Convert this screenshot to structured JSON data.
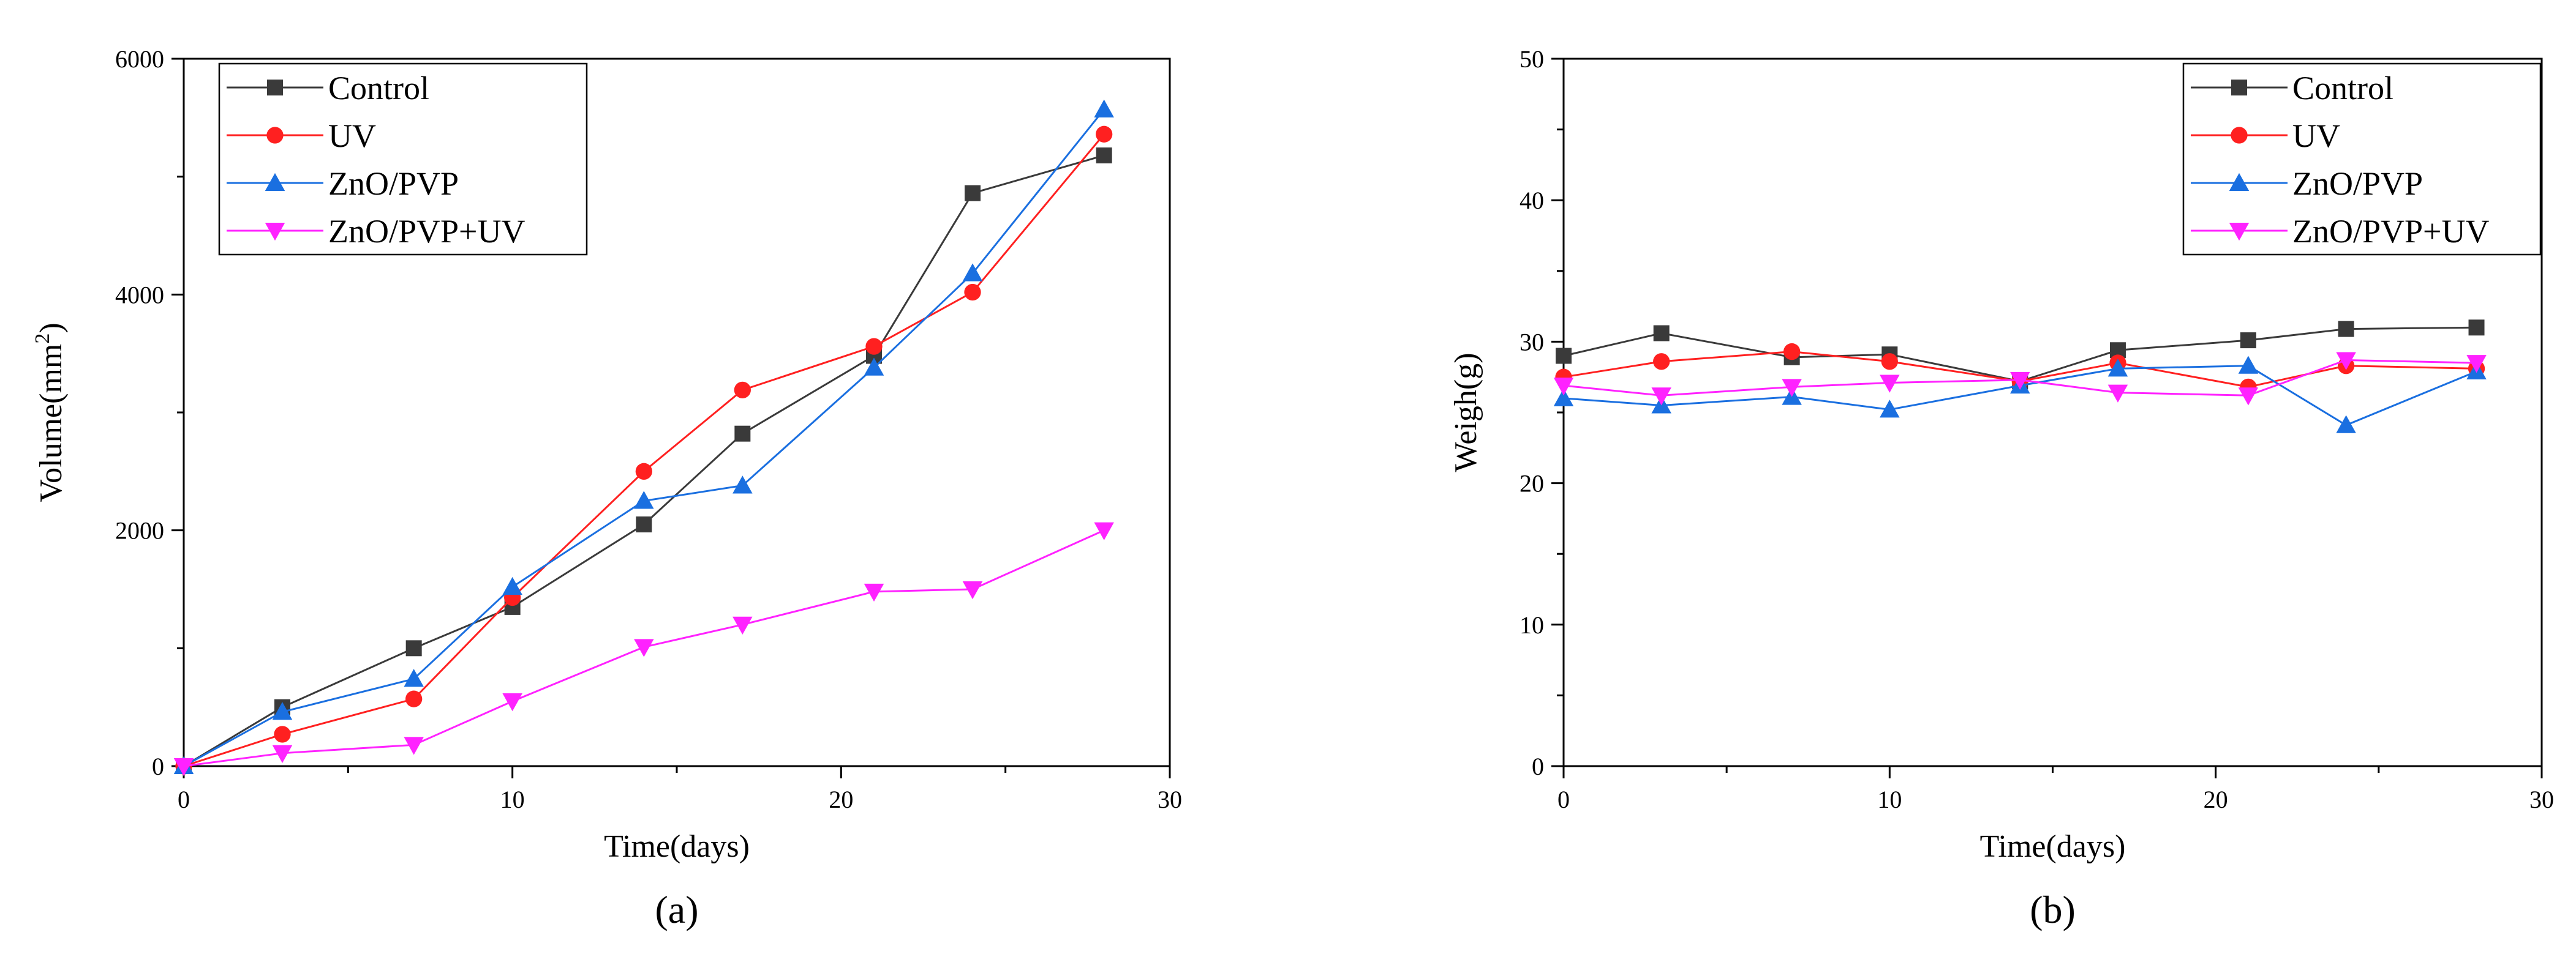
{
  "chart_data": [
    {
      "type": "line",
      "panel_label": "(a)",
      "xlabel": "Time(days)",
      "ylabel": {
        "base": "Volume(mm",
        "sup": "2",
        "close": ")"
      },
      "xlim": [
        0,
        30
      ],
      "ylim": [
        0,
        6000
      ],
      "xticks": [
        "0",
        "10",
        "20",
        "30"
      ],
      "yticks": [
        "0",
        "2000",
        "4000",
        "6000"
      ],
      "x": [
        0,
        3,
        7,
        10,
        14,
        17,
        21,
        24,
        28
      ],
      "legend_position": "top-left",
      "series": [
        {
          "name": "Control",
          "color": "#3a3a3a",
          "marker": "square",
          "values": [
            0,
            500,
            1000,
            1350,
            2050,
            2820,
            3480,
            4860,
            5180
          ]
        },
        {
          "name": "UV",
          "color": "#ff2020",
          "marker": "circle",
          "values": [
            0,
            270,
            570,
            1430,
            2500,
            3190,
            3560,
            4020,
            5360
          ]
        },
        {
          "name": "ZnO/PVP",
          "color": "#1a6fe0",
          "marker": "triangle-up",
          "values": [
            0,
            460,
            740,
            1520,
            2250,
            2380,
            3380,
            4180,
            5570
          ]
        },
        {
          "name": "ZnO/PVP+UV",
          "color": "#ff22ff",
          "marker": "triangle-down",
          "values": [
            0,
            110,
            180,
            550,
            1010,
            1200,
            1480,
            1500,
            2000
          ]
        }
      ]
    },
    {
      "type": "line",
      "panel_label": "(b)",
      "xlabel": "Time(days)",
      "ylabel": {
        "base": "Weigh(g)",
        "sup": "",
        "close": ""
      },
      "xlim": [
        0,
        30
      ],
      "ylim": [
        0,
        50
      ],
      "xticks": [
        "0",
        "10",
        "20",
        "30"
      ],
      "yticks": [
        "0",
        "10",
        "20",
        "30",
        "40",
        "50"
      ],
      "x": [
        0,
        3,
        7,
        10,
        14,
        17,
        21,
        24,
        28
      ],
      "legend_position": "top-right",
      "series": [
        {
          "name": "Control",
          "color": "#3a3a3a",
          "marker": "square",
          "values": [
            29.0,
            30.6,
            28.9,
            29.1,
            27.2,
            29.4,
            30.1,
            30.9,
            31.0
          ]
        },
        {
          "name": "UV",
          "color": "#ff2020",
          "marker": "circle",
          "values": [
            27.5,
            28.6,
            29.3,
            28.6,
            27.2,
            28.5,
            26.8,
            28.3,
            28.1
          ]
        },
        {
          "name": "ZnO/PVP",
          "color": "#1a6fe0",
          "marker": "triangle-up",
          "values": [
            26.0,
            25.5,
            26.1,
            25.2,
            26.9,
            28.1,
            28.3,
            24.1,
            27.9
          ]
        },
        {
          "name": "ZnO/PVP+UV",
          "color": "#ff22ff",
          "marker": "triangle-down",
          "values": [
            26.9,
            26.2,
            26.8,
            27.1,
            27.3,
            26.4,
            26.2,
            28.7,
            28.5
          ]
        }
      ]
    }
  ]
}
